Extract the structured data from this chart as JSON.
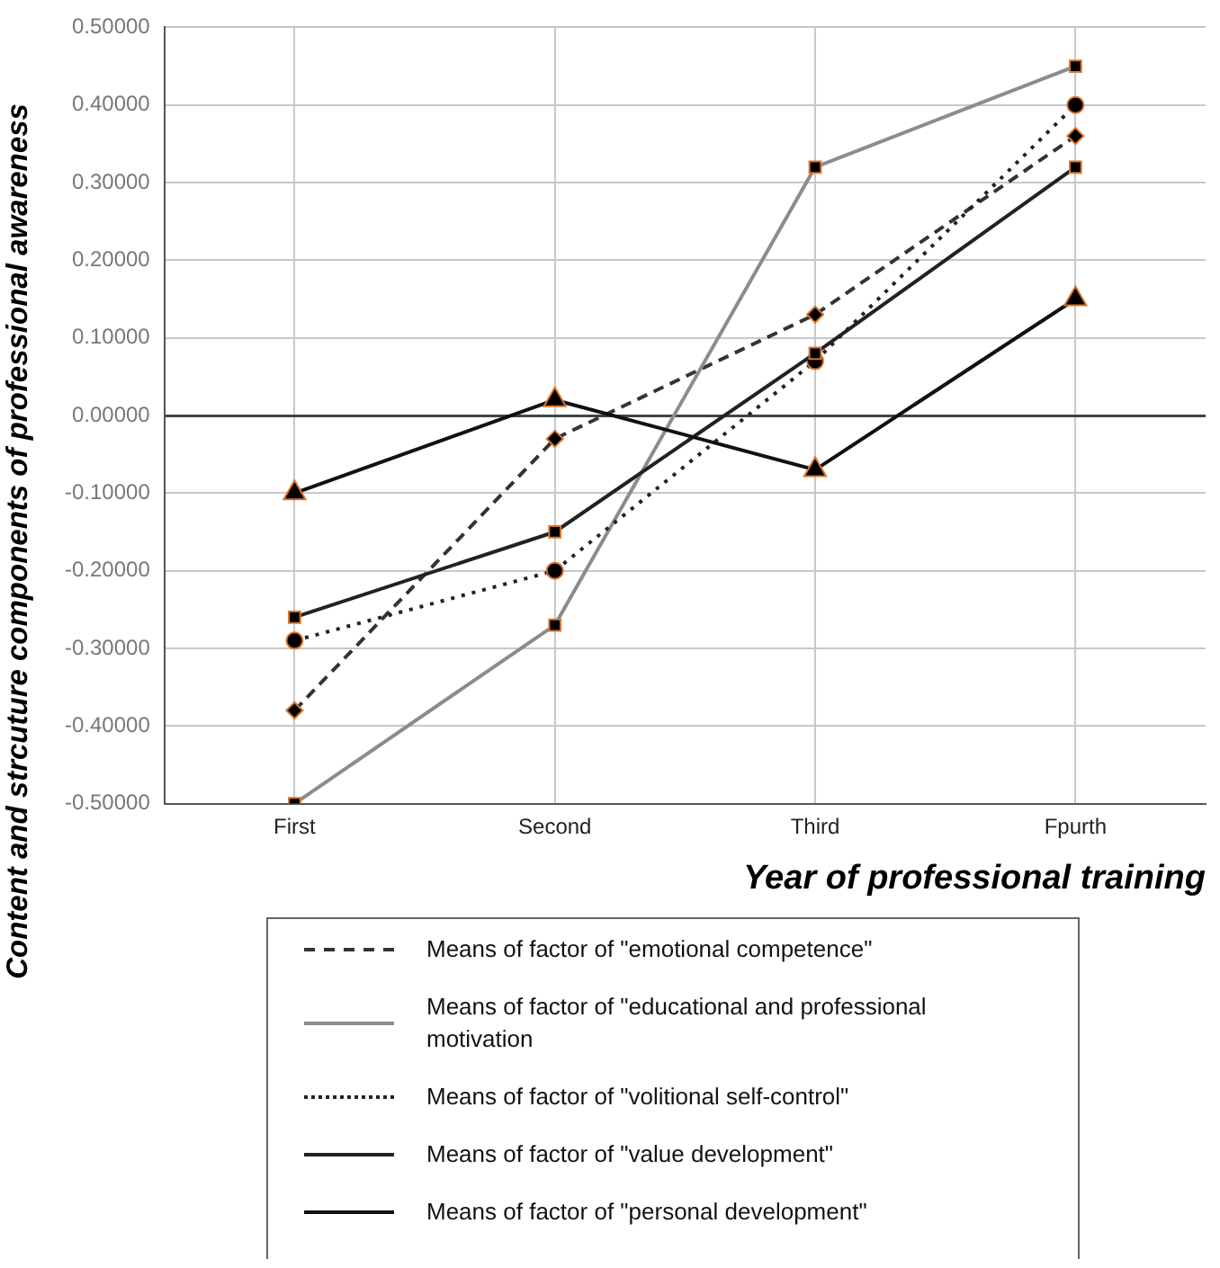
{
  "chart_data": {
    "type": "line",
    "xlabel": "Year of professional training",
    "ylabel": "Content and strcuture components of professional awareness",
    "categories": [
      "First",
      "Second",
      "Third",
      "Fpurth"
    ],
    "series": [
      {
        "name": "Means of factor of \"emotional competence\"",
        "color": "#333333",
        "line_style": "dashed",
        "marker": "diamond",
        "values": [
          -0.38,
          -0.03,
          0.13,
          0.36
        ]
      },
      {
        "name": "Means of factor of \"educational and professional motivation",
        "color": "#8c8c8c",
        "line_style": "solid",
        "marker": "square",
        "values": [
          -0.5,
          -0.27,
          0.32,
          0.45
        ]
      },
      {
        "name": "Means of factor of \"volitional self-control\"",
        "color": "#222222",
        "line_style": "dotted",
        "marker": "circle",
        "values": [
          -0.29,
          -0.2,
          0.07,
          0.4
        ]
      },
      {
        "name": "Means of factor of \"value development\"",
        "color": "#222222",
        "line_style": "solid",
        "marker": "square",
        "values": [
          -0.26,
          -0.15,
          0.08,
          0.32
        ]
      },
      {
        "name": "Means of factor of \"personal development\"",
        "color": "#111111",
        "line_style": "solid",
        "marker": "triangle",
        "values": [
          -0.1,
          0.02,
          -0.07,
          0.15
        ]
      }
    ],
    "ylim": [
      -0.5,
      0.5
    ],
    "yticks": [
      {
        "value": -0.5,
        "label": "-0.50000"
      },
      {
        "value": -0.4,
        "label": "-0.40000"
      },
      {
        "value": -0.3,
        "label": "-0.30000"
      },
      {
        "value": -0.2,
        "label": "-0.20000"
      },
      {
        "value": -0.1,
        "label": "-0.10000"
      },
      {
        "value": 0,
        "label": "0.00000"
      },
      {
        "value": 0.1,
        "label": "0.10000"
      },
      {
        "value": 0.2,
        "label": "0.20000"
      },
      {
        "value": 0.3,
        "label": "0.30000"
      },
      {
        "value": 0.4,
        "label": "0.40000"
      },
      {
        "value": 0.5,
        "label": "0.50000"
      }
    ],
    "grid": true,
    "legend": "bottom"
  }
}
